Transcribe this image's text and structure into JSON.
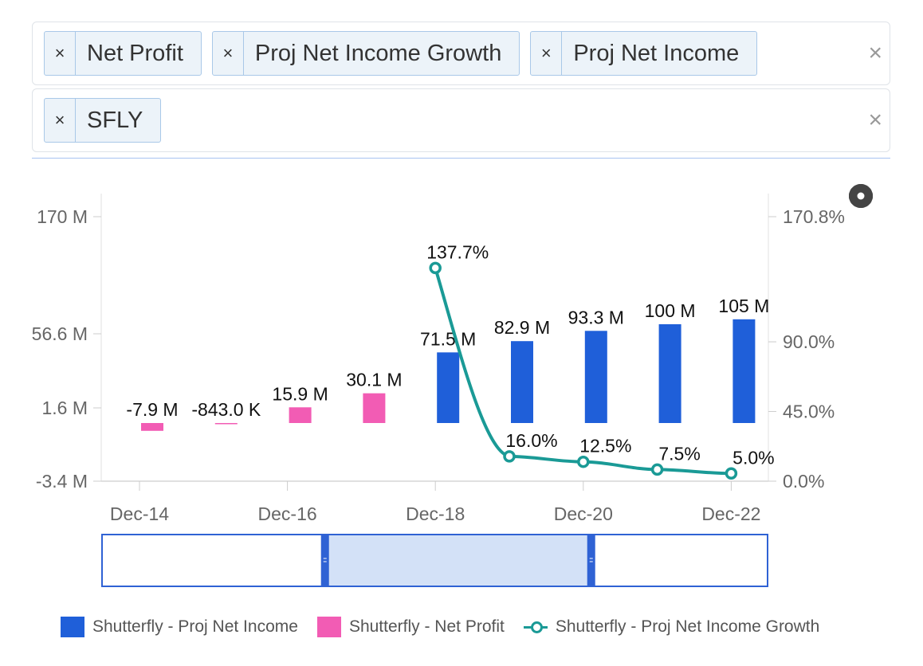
{
  "filters": {
    "metrics": [
      "Net Profit",
      "Proj Net Income Growth",
      "Proj Net Income"
    ],
    "tickers": [
      "SFLY"
    ],
    "remove_glyph": "×",
    "clear_glyph": "×"
  },
  "settings_icon": "gear-icon",
  "chart_data": {
    "type": "bar",
    "x_ticks": [
      "Dec-14",
      "Dec-16",
      "Dec-18",
      "Dec-20",
      "Dec-22"
    ],
    "left_axis": {
      "ticks": [
        "170 M",
        "56.6 M",
        "1.6 M",
        "-3.4 M"
      ],
      "values": [
        170,
        56.6,
        1.6,
        -3.4
      ]
    },
    "right_axis": {
      "ticks": [
        "170.8%",
        "90.0%",
        "45.0%",
        "0.0%"
      ],
      "values": [
        170.8,
        90.0,
        45.0,
        0.0
      ]
    },
    "series": [
      {
        "name": "Shutterfly - Net Profit",
        "kind": "bar",
        "color": "#f25cb4",
        "points": [
          {
            "x": "Dec-14",
            "value": -7.9,
            "label": "-7.9 M"
          },
          {
            "x": "Dec-15",
            "value": -0.843,
            "label": "-843.0 K"
          },
          {
            "x": "Dec-16",
            "value": 15.9,
            "label": "15.9 M"
          },
          {
            "x": "Dec-17",
            "value": 30.1,
            "label": "30.1 M"
          }
        ]
      },
      {
        "name": "Shutterfly - Proj Net Income",
        "kind": "bar",
        "color": "#1f5fd9",
        "points": [
          {
            "x": "Dec-18",
            "value": 71.5,
            "label": "71.5 M"
          },
          {
            "x": "Dec-19",
            "value": 82.9,
            "label": "82.9 M"
          },
          {
            "x": "Dec-20",
            "value": 93.3,
            "label": "93.3 M"
          },
          {
            "x": "Dec-21",
            "value": 100,
            "label": "100 M"
          },
          {
            "x": "Dec-22",
            "value": 105,
            "label": "105 M"
          }
        ]
      },
      {
        "name": "Shutterfly - Proj Net Income Growth",
        "kind": "line",
        "color": "#1a9a96",
        "points": [
          {
            "x": "Dec-18",
            "value": 137.7,
            "label": "137.7%"
          },
          {
            "x": "Dec-19",
            "value": 16.0,
            "label": "16.0%"
          },
          {
            "x": "Dec-20",
            "value": 12.5,
            "label": "12.5%"
          },
          {
            "x": "Dec-21",
            "value": 7.5,
            "label": "7.5%"
          },
          {
            "x": "Dec-22",
            "value": 5.0,
            "label": "5.0%"
          }
        ]
      }
    ],
    "navigator": {
      "start_fraction": 0.335,
      "end_fraction": 0.735
    }
  },
  "legend": [
    {
      "label": "Shutterfly - Proj Net Income",
      "kind": "bar",
      "color": "#1f5fd9"
    },
    {
      "label": "Shutterfly - Net Profit",
      "kind": "bar",
      "color": "#f25cb4"
    },
    {
      "label": "Shutterfly - Proj Net Income Growth",
      "kind": "line",
      "color": "#1a9a96"
    }
  ]
}
